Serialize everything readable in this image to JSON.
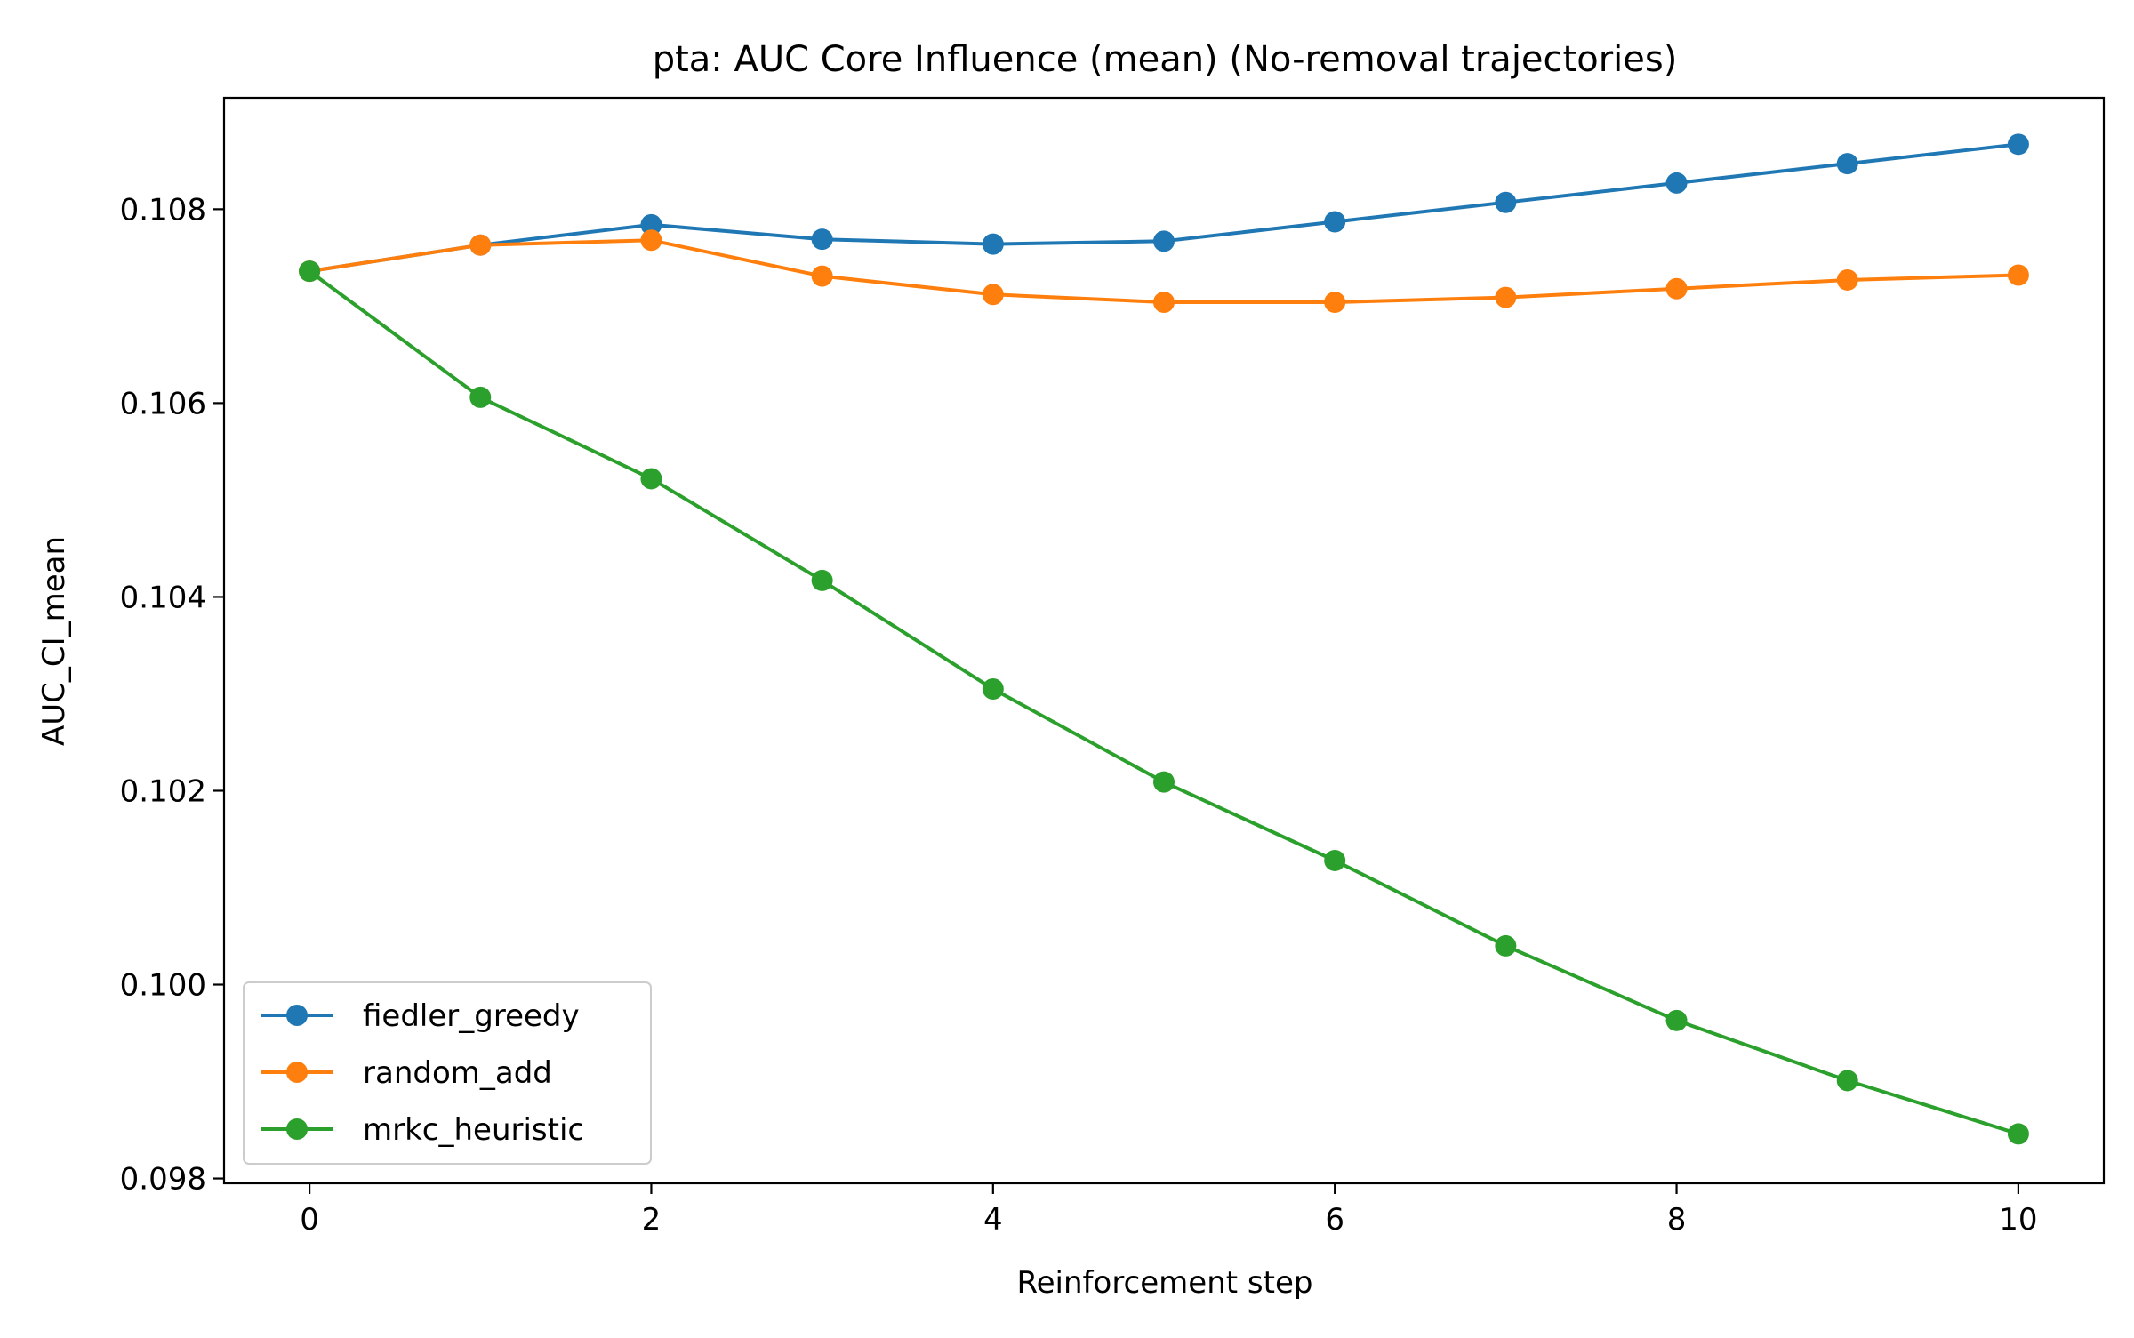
{
  "chart_data": {
    "type": "line",
    "title": "pta: AUC Core Influence (mean) (No-removal trajectories)",
    "xlabel": "Reinforcement step",
    "ylabel": "AUC_CI_mean",
    "xlim": [
      -0.5,
      10.5
    ],
    "ylim": [
      0.09795,
      0.10915
    ],
    "x_ticks": [
      0,
      2,
      4,
      6,
      8,
      10
    ],
    "x_tick_labels": [
      "0",
      "2",
      "4",
      "6",
      "8",
      "10"
    ],
    "y_ticks": [
      0.098,
      0.1,
      0.102,
      0.104,
      0.106,
      0.108
    ],
    "y_tick_labels": [
      "0.098",
      "0.100",
      "0.102",
      "0.104",
      "0.106",
      "0.108"
    ],
    "grid": false,
    "legend_position": "lower-left",
    "x": [
      0,
      1,
      2,
      3,
      4,
      5,
      6,
      7,
      8,
      9,
      10
    ],
    "series": [
      {
        "name": "fiedler_greedy",
        "color": "#1f77b4",
        "marker": "circle",
        "values": [
          0.10736,
          0.10763,
          0.10784,
          0.10769,
          0.10764,
          0.10767,
          0.10787,
          0.10807,
          0.10827,
          0.10847,
          0.10867
        ]
      },
      {
        "name": "random_add",
        "color": "#ff7f0e",
        "marker": "circle",
        "values": [
          0.10736,
          0.10763,
          0.10768,
          0.10731,
          0.10712,
          0.10704,
          0.10704,
          0.10709,
          0.10718,
          0.10727,
          0.10732
        ]
      },
      {
        "name": "mrkc_heuristic",
        "color": "#2ca02c",
        "marker": "circle",
        "values": [
          0.10736,
          0.10606,
          0.10522,
          0.10417,
          0.10305,
          0.10209,
          0.10128,
          0.1004,
          0.09963,
          0.09901,
          0.09846
        ]
      }
    ]
  }
}
